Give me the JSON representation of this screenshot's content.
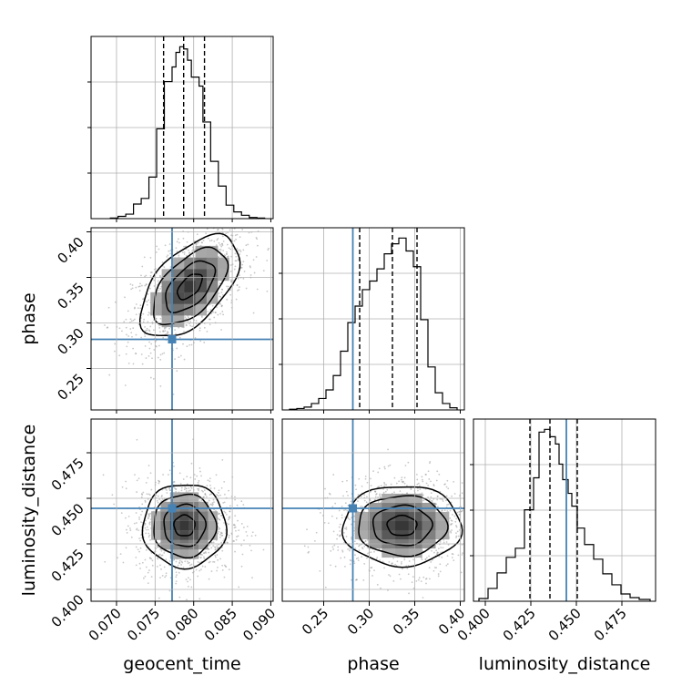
{
  "chart_data": {
    "type": "corner",
    "parameters": [
      "geocent_time",
      "phase",
      "luminosity_distance"
    ],
    "truths": {
      "geocent_time": 0.0772,
      "phase": 0.282,
      "luminosity_distance": 0.4445
    },
    "truth_color": "#4682b4",
    "ranges": {
      "geocent_time": [
        0.0667,
        0.0903
      ],
      "phase": [
        0.2045,
        0.4045
      ],
      "luminosity_distance": [
        0.3935,
        0.4935
      ]
    },
    "ticks": {
      "geocent_time": [
        "0.070",
        "0.075",
        "0.080",
        "0.085",
        "0.090"
      ],
      "phase": [
        "0.25",
        "0.30",
        "0.35",
        "0.40"
      ],
      "luminosity_distance": [
        "0.400",
        "0.425",
        "0.450",
        "0.475"
      ]
    },
    "quantiles": {
      "geocent_time": [
        0.0761,
        0.0787,
        0.0814
      ],
      "phase": [
        0.2895,
        0.3255,
        0.3525
      ],
      "luminosity_distance": [
        0.4245,
        0.4355,
        0.4505
      ]
    },
    "histograms": {
      "geocent_time": {
        "bin_edges": [
          0.0692,
          0.0702,
          0.0712,
          0.0722,
          0.0732,
          0.0742,
          0.0752,
          0.0762,
          0.0772,
          0.0777,
          0.0782,
          0.0787,
          0.0792,
          0.0797,
          0.0807,
          0.0812,
          0.0822,
          0.0832,
          0.0842,
          0.0852,
          0.0862,
          0.0872,
          0.0882,
          0.0892
        ],
        "counts": [
          0.5,
          2,
          4,
          13,
          18,
          37,
          80,
          122,
          135,
          148,
          153,
          151,
          141,
          126,
          118,
          86,
          51,
          29,
          12,
          6,
          3,
          1,
          0.5
        ]
      },
      "phase": {
        "bin_edges": [
          0.2125,
          0.2205,
          0.2285,
          0.2365,
          0.2445,
          0.2525,
          0.2605,
          0.2685,
          0.2765,
          0.2845,
          0.2925,
          0.3005,
          0.3085,
          0.3165,
          0.3245,
          0.3325,
          0.3405,
          0.3485,
          0.3565,
          0.3645,
          0.3725,
          0.3805,
          0.3885,
          0.3965
        ],
        "counts": [
          1,
          2,
          4,
          9,
          16,
          28,
          48,
          82,
          122,
          145,
          168,
          180,
          197,
          218,
          232,
          240,
          222,
          200,
          126,
          60,
          24,
          9,
          3
        ]
      },
      "luminosity_distance": {
        "bin_edges": [
          0.3965,
          0.4015,
          0.4065,
          0.4115,
          0.4165,
          0.4215,
          0.4265,
          0.4295,
          0.4325,
          0.4355,
          0.4385,
          0.4405,
          0.4425,
          0.4455,
          0.4475,
          0.4505,
          0.4545,
          0.4595,
          0.4645,
          0.4695,
          0.4745,
          0.4795,
          0.4845,
          0.4905
        ],
        "counts": [
          3,
          14,
          31,
          48,
          58,
          100,
          135,
          185,
          188,
          180,
          172,
          150,
          133,
          118,
          104,
          80,
          62,
          46,
          30,
          18,
          8,
          4,
          2
        ]
      }
    },
    "pairs": [
      {
        "x": "geocent_time",
        "y": "phase",
        "peak": [
          0.0795,
          0.34
        ],
        "sigma": [
          0.0032,
          0.028
        ],
        "rho": 0.55
      },
      {
        "x": "geocent_time",
        "y": "luminosity_distance",
        "peak": [
          0.0788,
          0.435
        ],
        "sigma": [
          0.0027,
          0.0115
        ],
        "rho": 0.0
      },
      {
        "x": "phase",
        "y": "luminosity_distance",
        "peak": [
          0.336,
          0.435
        ],
        "sigma": [
          0.0325,
          0.011
        ],
        "rho": 0.0
      }
    ],
    "axis_labels": {
      "x": [
        "geocent_time",
        "phase",
        "luminosity_distance"
      ],
      "y": [
        "phase",
        "luminosity_distance"
      ]
    },
    "grid": true
  }
}
